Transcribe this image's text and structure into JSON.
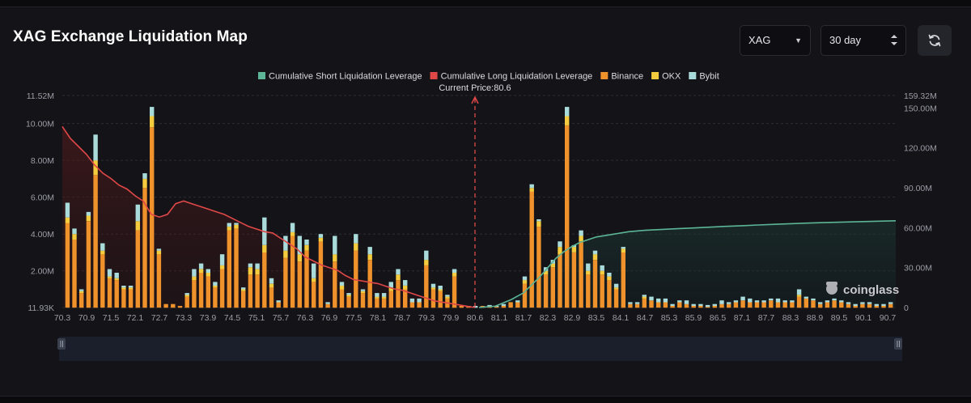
{
  "header": {
    "title": "XAG Exchange Liquidation Map",
    "coin_select": "XAG",
    "range_select": "30 day"
  },
  "watermark": "coinglass",
  "colors": {
    "binance": "#f0922b",
    "okx": "#f5cc3d",
    "bybit": "#a9dbdb",
    "short_line": "#5cb596",
    "long_line": "#e04848",
    "current_price": "#e04848",
    "grid": "#2e2e36",
    "axis_text": "#9c9ca6"
  },
  "chart_data": {
    "type": "bar",
    "stacked": true,
    "title": "",
    "current_price_label": "Current Price:80.6",
    "current_price": 80.6,
    "legend": [
      {
        "name": "Cumulative Short Liquidation Leverage",
        "color": "#5cb596"
      },
      {
        "name": "Cumulative Long Liquidation Leverage",
        "color": "#e04848"
      },
      {
        "name": "Binance",
        "color": "#f0922b"
      },
      {
        "name": "OKX",
        "color": "#f5cc3d"
      },
      {
        "name": "Bybit",
        "color": "#a9dbdb"
      }
    ],
    "legend_position": "top-center",
    "y_left": {
      "ticks": [
        "11.93K",
        "2.00M",
        "4.00M",
        "6.00M",
        "8.00M",
        "10.00M",
        "11.52M"
      ],
      "tick_values": [
        0.01193,
        2,
        4,
        6,
        8,
        10,
        11.52
      ],
      "min": 0.01193,
      "max": 11.52,
      "unit": "M"
    },
    "y_right": {
      "ticks": [
        "0",
        "30.00M",
        "60.00M",
        "90.00M",
        "120.00M",
        "150.00M",
        "159.32M"
      ],
      "tick_values": [
        0,
        30,
        60,
        90,
        120,
        150,
        159.32
      ],
      "min": 0,
      "max": 159.32,
      "unit": "M"
    },
    "x_ticks": [
      "70.3",
      "70.9",
      "71.5",
      "72.1",
      "72.7",
      "73.3",
      "73.9",
      "74.5",
      "75.1",
      "75.7",
      "76.3",
      "76.9",
      "77.5",
      "78.1",
      "78.7",
      "79.3",
      "79.9",
      "80.6",
      "81.1",
      "81.7",
      "82.3",
      "82.9",
      "83.5",
      "84.1",
      "84.7",
      "85.3",
      "85.9",
      "86.5",
      "87.1",
      "87.7",
      "88.3",
      "88.9",
      "89.5",
      "90.1",
      "90.7"
    ],
    "series": [
      {
        "name": "Binance",
        "values": [
          4.6,
          3.7,
          0.8,
          4.7,
          7.2,
          2.9,
          1.6,
          1.5,
          1.0,
          1.0,
          4.2,
          6.5,
          9.8,
          2.9,
          0.2,
          0.2,
          0.1,
          0.6,
          1.5,
          1.9,
          1.7,
          1.1,
          2.1,
          4.2,
          4.3,
          0.9,
          1.8,
          1.8,
          3.0,
          1.1,
          0.3,
          2.7,
          3.9,
          2.5,
          3.1,
          1.4,
          3.6,
          0.2,
          2.5,
          1.0,
          0.6,
          3.1,
          0.8,
          2.6,
          0.5,
          0.5,
          0.9,
          1.5,
          1.0,
          0.3,
          0.3,
          2.3,
          1.0,
          0.9,
          0.5,
          1.7,
          0.1,
          0.1,
          0.0,
          0.1,
          0.05,
          0.05,
          0.1,
          0.3,
          0.3,
          1.3,
          6.3,
          4.4,
          1.8,
          2.2,
          2.9,
          9.9,
          3.0,
          3.6,
          1.8,
          2.6,
          1.8,
          1.5,
          1.0,
          3.0,
          0.2,
          0.2,
          0.5,
          0.4,
          0.3,
          0.3,
          0.1,
          0.3,
          0.2,
          0.1,
          0.1,
          0.05,
          0.1,
          0.2,
          0.2,
          0.3,
          0.4,
          0.3,
          0.3,
          0.3,
          0.4,
          0.3,
          0.3,
          0.3,
          0.6,
          0.5,
          0.4,
          0.2,
          0.3,
          0.4,
          0.3,
          0.2,
          0.1,
          0.2,
          0.2,
          0.1,
          0.1,
          0.2
        ]
      },
      {
        "name": "OKX",
        "values": [
          0.3,
          0.3,
          0.1,
          0.3,
          0.8,
          0.2,
          0.1,
          0.1,
          0.1,
          0.1,
          0.5,
          0.5,
          0.6,
          0.2,
          0.0,
          0.0,
          0.0,
          0.1,
          0.2,
          0.2,
          0.2,
          0.1,
          0.2,
          0.2,
          0.2,
          0.1,
          0.4,
          0.3,
          0.4,
          0.2,
          0.0,
          0.4,
          0.2,
          0.4,
          0.3,
          0.2,
          0.2,
          0.0,
          0.4,
          0.2,
          0.1,
          0.4,
          0.1,
          0.3,
          0.1,
          0.1,
          0.2,
          0.3,
          0.2,
          0.0,
          0.0,
          0.3,
          0.1,
          0.1,
          0.1,
          0.2,
          0.0,
          0.0,
          0.0,
          0.0,
          0.0,
          0.0,
          0.0,
          0.0,
          0.0,
          0.2,
          0.2,
          0.3,
          0.2,
          0.2,
          0.4,
          0.5,
          0.3,
          0.3,
          0.2,
          0.3,
          0.2,
          0.2,
          0.1,
          0.2,
          0.0,
          0.0,
          0.1,
          0.0,
          0.0,
          0.0,
          0.0,
          0.0,
          0.0,
          0.0,
          0.0,
          0.0,
          0.0,
          0.0,
          0.0,
          0.0,
          0.0,
          0.0,
          0.0,
          0.0,
          0.0,
          0.0,
          0.0,
          0.0,
          0.1,
          0.0,
          0.0,
          0.0,
          0.0,
          0.0,
          0.0,
          0.0,
          0.0,
          0.0,
          0.0,
          0.0,
          0.0,
          0.0
        ]
      },
      {
        "name": "Bybit",
        "values": [
          0.8,
          0.3,
          0.1,
          0.2,
          1.4,
          0.4,
          0.4,
          0.3,
          0.1,
          0.1,
          0.9,
          0.3,
          0.5,
          0.1,
          0.0,
          0.0,
          0.0,
          0.1,
          0.4,
          0.3,
          0.2,
          0.2,
          0.6,
          0.2,
          0.1,
          0.1,
          0.2,
          0.3,
          1.5,
          0.3,
          0.1,
          0.8,
          0.5,
          1.0,
          0.3,
          0.8,
          0.2,
          0.1,
          1.0,
          0.2,
          0.1,
          0.5,
          0.1,
          0.4,
          0.2,
          0.2,
          0.3,
          0.3,
          0.3,
          0.2,
          0.2,
          0.5,
          0.2,
          0.2,
          0.1,
          0.2,
          0.0,
          0.0,
          0.1,
          0.0,
          0.1,
          0.05,
          0.1,
          0.0,
          0.1,
          0.2,
          0.2,
          0.1,
          0.2,
          0.2,
          0.3,
          0.5,
          0.1,
          0.3,
          0.4,
          0.2,
          0.3,
          0.2,
          0.2,
          0.1,
          0.1,
          0.1,
          0.1,
          0.2,
          0.2,
          0.2,
          0.1,
          0.1,
          0.2,
          0.1,
          0.1,
          0.1,
          0.1,
          0.2,
          0.1,
          0.1,
          0.2,
          0.2,
          0.1,
          0.1,
          0.1,
          0.2,
          0.1,
          0.1,
          0.3,
          0.1,
          0.1,
          0.1,
          0.1,
          0.1,
          0.1,
          0.1,
          0.1,
          0.1,
          0.1,
          0.1,
          0.1,
          0.1
        ]
      },
      {
        "name": "Cumulative Long Liquidation Leverage",
        "axis": "right",
        "x": [
          70.3,
          70.5,
          70.7,
          70.9,
          71.1,
          71.3,
          71.5,
          71.7,
          71.9,
          72.1,
          72.3,
          72.5,
          72.7,
          72.9,
          73.1,
          73.3,
          73.5,
          73.7,
          73.9,
          74.1,
          74.3,
          74.5,
          74.7,
          74.9,
          75.1,
          75.3,
          75.5,
          75.7,
          75.9,
          76.1,
          76.3,
          76.5,
          76.7,
          76.9,
          77.1,
          77.3,
          77.5,
          77.7,
          77.9,
          78.1,
          78.3,
          78.5,
          78.7,
          78.9,
          79.1,
          79.3,
          79.5,
          79.7,
          79.9,
          80.1,
          80.3,
          80.5
        ],
        "values": [
          136,
          127,
          121,
          115,
          107,
          101,
          97,
          92,
          89,
          84,
          80,
          70,
          68,
          70,
          78,
          80,
          78,
          76,
          74,
          72,
          70,
          67,
          64,
          61,
          59,
          57,
          56,
          52,
          48,
          44,
          38,
          35,
          32,
          30,
          28,
          24,
          21,
          20,
          19,
          18,
          16,
          14,
          13,
          11,
          9,
          7,
          5,
          4,
          3,
          2,
          1,
          0
        ]
      },
      {
        "name": "Cumulative Short Liquidation Leverage",
        "axis": "right",
        "x": [
          80.6,
          81.0,
          81.4,
          81.7,
          81.9,
          82.1,
          82.3,
          82.5,
          82.7,
          82.9,
          83.1,
          83.3,
          83.5,
          83.7,
          83.9,
          84.1,
          84.3,
          84.7,
          85.1,
          85.5,
          85.9,
          86.3,
          86.7,
          87.1,
          87.5,
          87.9,
          88.3,
          88.7,
          89.1,
          89.5,
          89.9,
          90.3,
          90.7,
          90.9
        ],
        "values": [
          0,
          1,
          6,
          11,
          17,
          23,
          30,
          37,
          42,
          46,
          49,
          51,
          53,
          54,
          55,
          56,
          57,
          58,
          58.6,
          59.2,
          59.8,
          60.4,
          61,
          61.5,
          62,
          62.5,
          63,
          63.4,
          63.8,
          64.1,
          64.4,
          64.7,
          65,
          65.2
        ]
      }
    ],
    "bar_x_range": [
      70.3,
      90.9
    ],
    "grid": true,
    "slider": true
  }
}
